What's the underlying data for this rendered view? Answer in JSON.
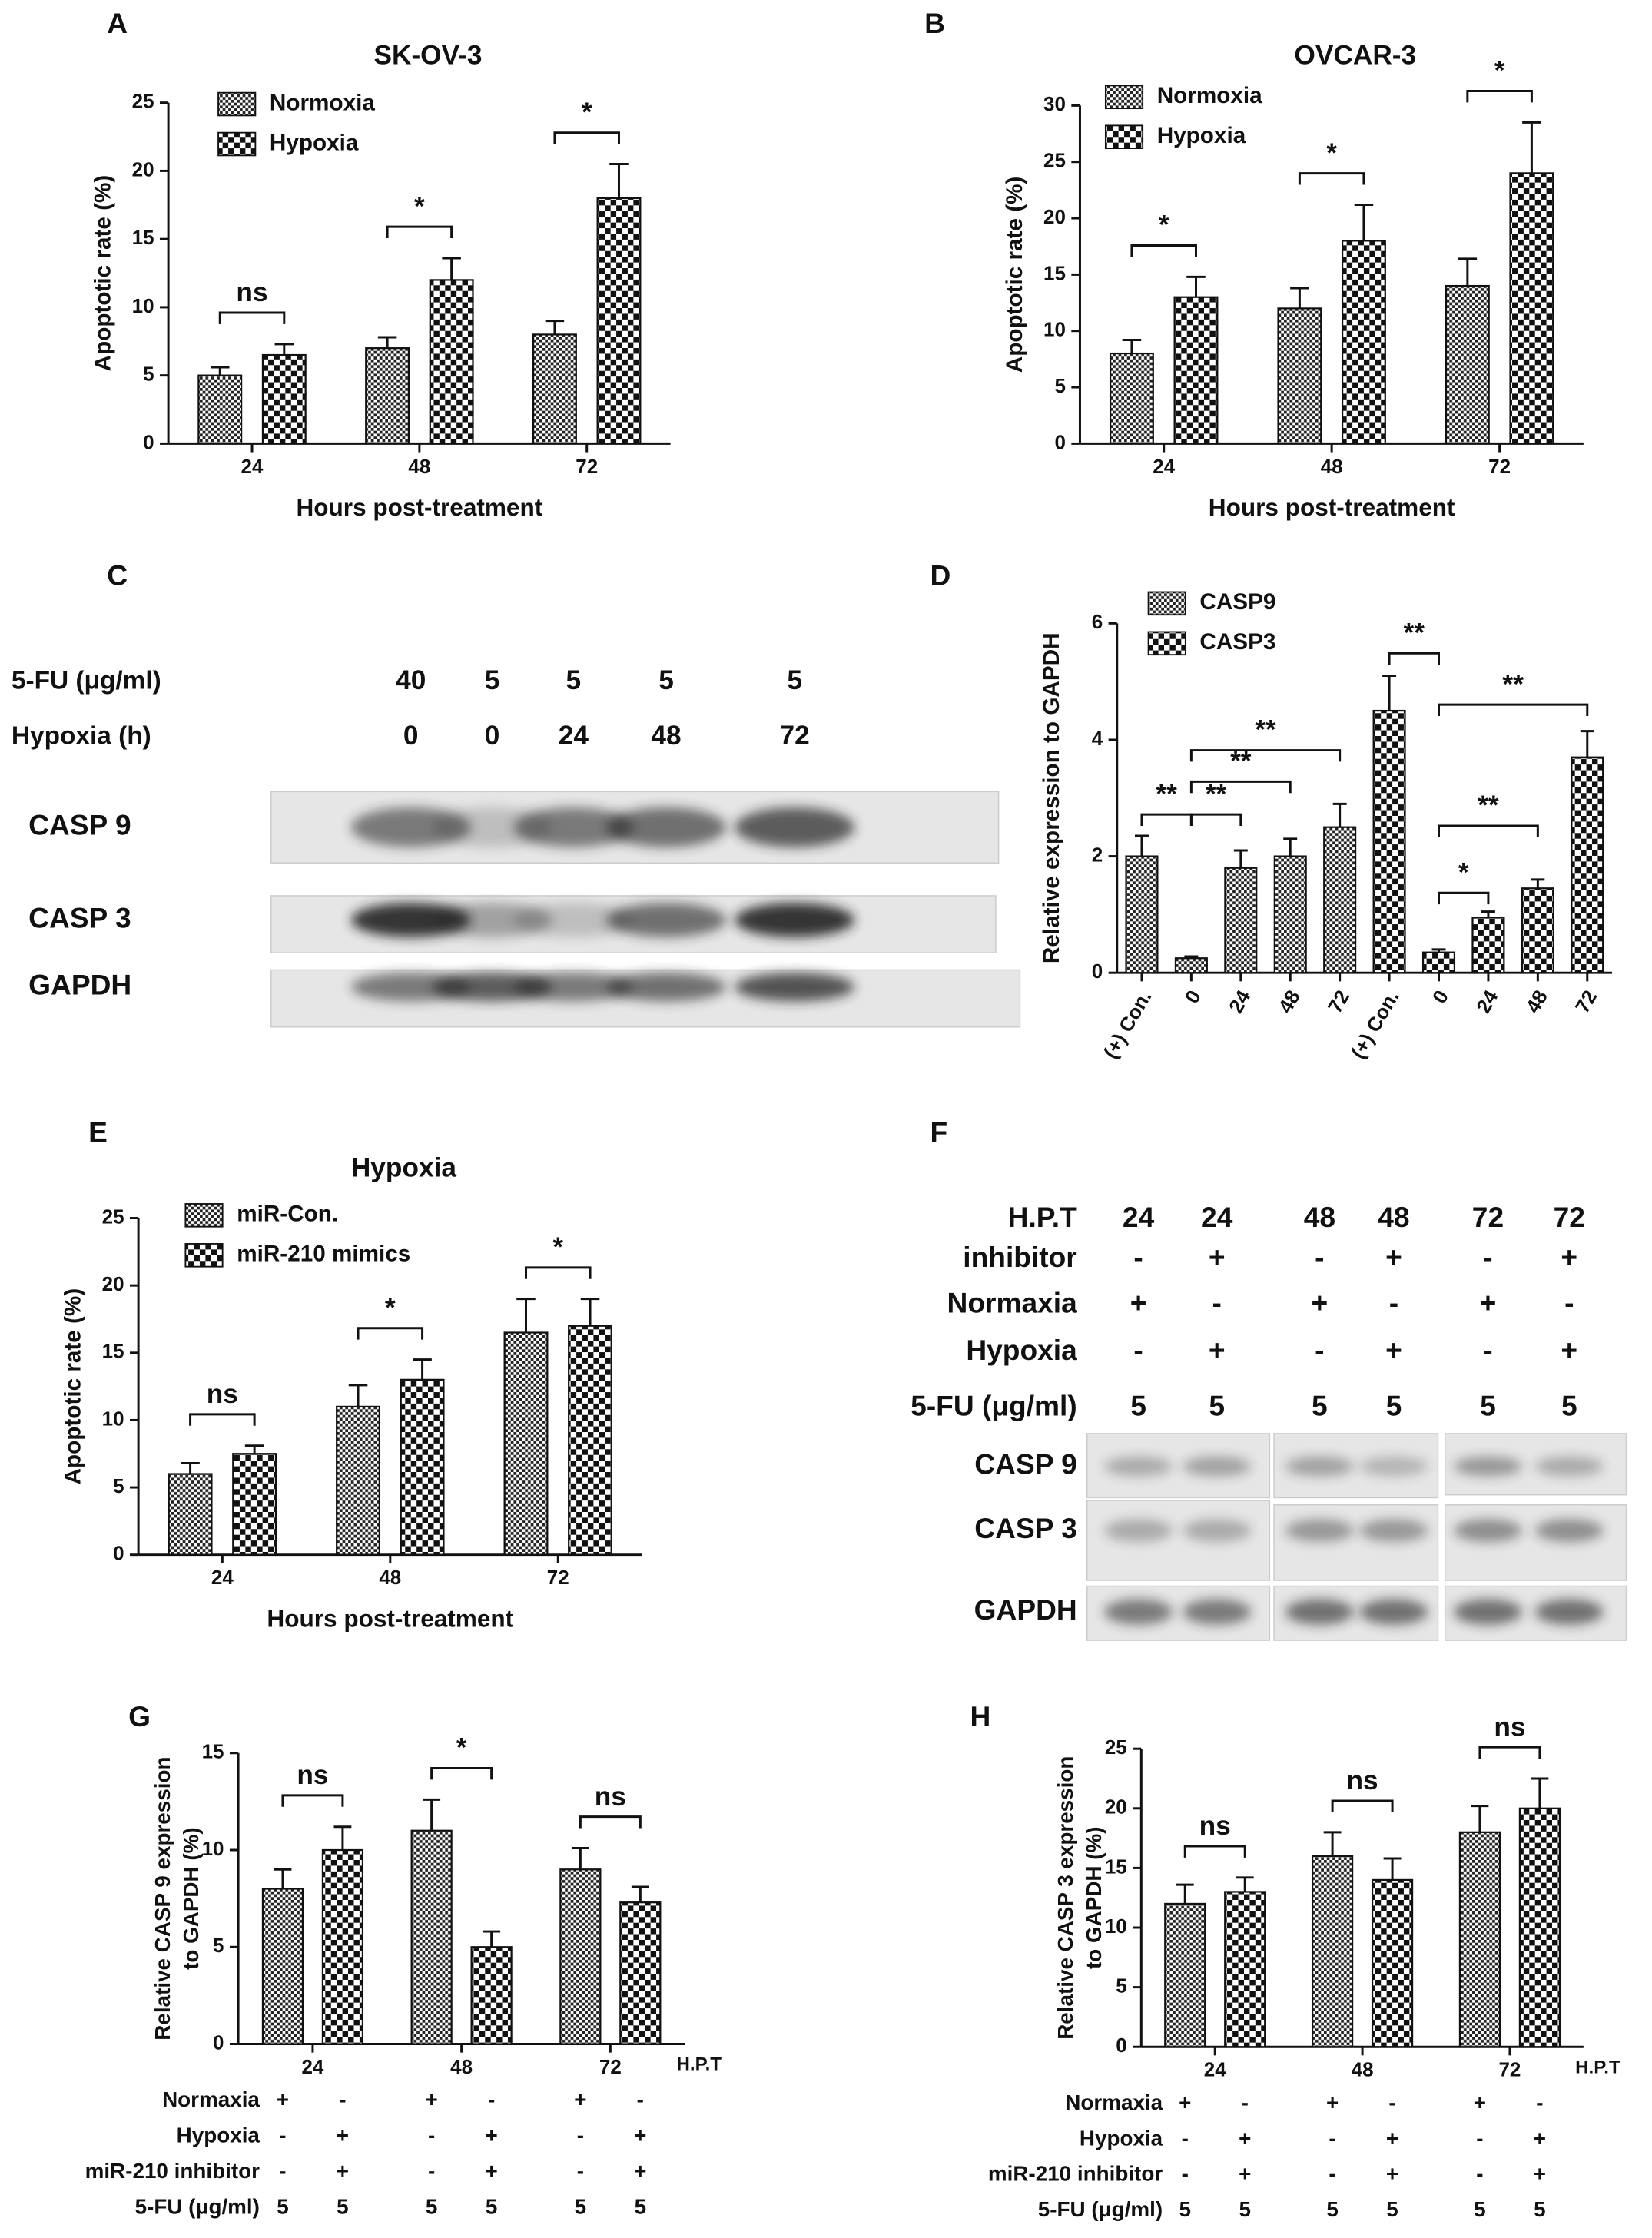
{
  "chart_data": [
    {
      "type": "bar",
      "letter": "A",
      "title": "SK-OV-3",
      "xlabel": "Hours post-treatment",
      "ylabel": "Apoptotic rate (%)",
      "categories": [
        "24",
        "48",
        "72"
      ],
      "series": [
        {
          "name": "Normoxia",
          "pattern": "fine",
          "values": [
            5,
            7,
            8
          ],
          "errors": [
            0.6,
            0.8,
            1.0
          ]
        },
        {
          "name": "Hypoxia",
          "pattern": "coarse",
          "values": [
            6.5,
            12,
            18
          ],
          "errors": [
            0.8,
            1.6,
            2.5
          ]
        }
      ],
      "ylim": [
        0,
        25
      ],
      "yticks": [
        0,
        5,
        10,
        15,
        20,
        25
      ],
      "annotations": [
        "ns",
        "*",
        "*"
      ]
    },
    {
      "type": "bar",
      "letter": "B",
      "title": "OVCAR-3",
      "xlabel": "Hours post-treatment",
      "ylabel": "Apoptotic rate (%)",
      "categories": [
        "24",
        "48",
        "72"
      ],
      "series": [
        {
          "name": "Normoxia",
          "pattern": "fine",
          "values": [
            8,
            12,
            14
          ],
          "errors": [
            1.2,
            1.8,
            2.4
          ]
        },
        {
          "name": "Hypoxia",
          "pattern": "coarse",
          "values": [
            13,
            18,
            24
          ],
          "errors": [
            1.8,
            3.2,
            4.5
          ]
        }
      ],
      "ylim": [
        0,
        30
      ],
      "yticks": [
        0,
        5,
        10,
        15,
        20,
        25,
        30
      ],
      "annotations": [
        "*",
        "*",
        "*"
      ]
    },
    {
      "type": "bar",
      "letter": "D",
      "ylabel": "Relative expression to GAPDH",
      "categories": [
        "(+) Con.",
        "0",
        "24",
        "48",
        "72",
        "(+) Con.",
        "0",
        "24",
        "48",
        "72"
      ],
      "series": [
        {
          "name": "CASP9",
          "pattern": "fine",
          "values": [
            2,
            0.25,
            1.8,
            2.0,
            2.5,
            null,
            null,
            null,
            null,
            null
          ],
          "errors": [
            0.35,
            0.03,
            0.3,
            0.3,
            0.4,
            null,
            null,
            null,
            null,
            null
          ]
        },
        {
          "name": "CASP3",
          "pattern": "coarse",
          "values": [
            null,
            null,
            null,
            null,
            null,
            4.5,
            0.35,
            0.95,
            1.45,
            3.7
          ],
          "errors": [
            null,
            null,
            null,
            null,
            null,
            0.6,
            0.05,
            0.1,
            0.15,
            0.45
          ]
        }
      ],
      "ylim": [
        0,
        6
      ],
      "yticks": [
        0,
        2,
        4,
        6
      ],
      "annotations": [
        "**",
        "**",
        "**",
        "**",
        "**",
        "**",
        "**",
        "*"
      ]
    },
    {
      "type": "bar",
      "letter": "E",
      "title": "Hypoxia",
      "xlabel": "Hours post-treatment",
      "ylabel": "Apoptotic rate (%)",
      "categories": [
        "24",
        "48",
        "72"
      ],
      "series": [
        {
          "name": "miR-Con.",
          "pattern": "fine",
          "values": [
            6,
            11,
            16.5
          ],
          "errors": [
            0.8,
            1.6,
            2.5
          ]
        },
        {
          "name": "miR-210 mimics",
          "pattern": "coarse",
          "values": [
            7.5,
            13,
            17
          ],
          "errors": [
            0.6,
            1.5,
            2
          ]
        }
      ],
      "ylim": [
        0,
        25
      ],
      "yticks": [
        0,
        5,
        10,
        15,
        20,
        25
      ],
      "annotations": [
        "ns",
        "*",
        "*"
      ]
    },
    {
      "type": "bar",
      "letter": "G",
      "ylabel": [
        "Relative CASP 9 expression",
        "to GAPDH (%)"
      ],
      "x_unit_label": "H.P.T",
      "categories": [
        "24",
        "48",
        "72"
      ],
      "series": [
        {
          "pattern": "fine",
          "values": [
            8,
            11,
            9
          ],
          "errors": [
            1,
            1.6,
            1.1
          ]
        },
        {
          "pattern": "coarse",
          "values": [
            10,
            5,
            7.3
          ],
          "errors": [
            1.2,
            0.8,
            0.8
          ]
        }
      ],
      "ylim": [
        0,
        15
      ],
      "yticks": [
        0,
        5,
        10,
        15
      ],
      "annotations": [
        "ns",
        "*",
        "ns"
      ],
      "conditions": [
        {
          "label": "Normaxia",
          "values": [
            "+",
            "-",
            "+",
            "-",
            "+",
            "-"
          ]
        },
        {
          "label": "Hypoxia",
          "values": [
            "-",
            "+",
            "-",
            "+",
            "-",
            "+"
          ]
        },
        {
          "label": "miR-210 inhibitor",
          "values": [
            "-",
            "+",
            "-",
            "+",
            "-",
            "+"
          ]
        },
        {
          "label": "5-FU (μg/ml)",
          "values": [
            5,
            5,
            5,
            5,
            5,
            5
          ]
        }
      ]
    },
    {
      "type": "bar",
      "letter": "H",
      "ylabel": [
        "Relative CASP 3 expression",
        "to GAPDH (%)"
      ],
      "x_unit_label": "H.P.T",
      "categories": [
        "24",
        "48",
        "72"
      ],
      "series": [
        {
          "pattern": "fine",
          "values": [
            12,
            16,
            18
          ],
          "errors": [
            1.6,
            2,
            2.2
          ]
        },
        {
          "pattern": "coarse",
          "values": [
            13,
            14,
            20
          ],
          "errors": [
            1.2,
            1.8,
            2.5
          ]
        }
      ],
      "ylim": [
        0,
        25
      ],
      "yticks": [
        0,
        5,
        10,
        15,
        20,
        25
      ],
      "annotations": [
        "ns",
        "ns",
        "ns"
      ],
      "conditions": [
        {
          "label": "Normaxia",
          "values": [
            "+",
            "-",
            "+",
            "-",
            "+",
            "-"
          ]
        },
        {
          "label": "Hypoxia",
          "values": [
            "-",
            "+",
            "-",
            "+",
            "-",
            "+"
          ]
        },
        {
          "label": "miR-210 inhibitor",
          "values": [
            "-",
            "+",
            "-",
            "+",
            "-",
            "+"
          ]
        },
        {
          "label": "5-FU (μg/ml)",
          "values": [
            5,
            5,
            5,
            5,
            5,
            5
          ]
        }
      ]
    }
  ],
  "blots": [
    {
      "letter": "C",
      "rows": [
        {
          "label": "5-FU (μg/ml)",
          "values": [
            40,
            5,
            5,
            5,
            5
          ]
        },
        {
          "label": "Hypoxia (h)",
          "values": [
            0,
            0,
            24,
            48,
            72
          ]
        }
      ],
      "bands": [
        "CASP 9",
        "CASP 3",
        "GAPDH"
      ]
    },
    {
      "letter": "F",
      "rows": [
        {
          "label": "H.P.T",
          "values": [
            24,
            24,
            48,
            48,
            72,
            72
          ]
        },
        {
          "label": "inhibitor",
          "values": [
            "-",
            "+",
            "-",
            "+",
            "-",
            "+"
          ]
        },
        {
          "label": "Normaxia",
          "values": [
            "+",
            "-",
            "+",
            "-",
            "+",
            "-"
          ]
        },
        {
          "label": "Hypoxia",
          "values": [
            "-",
            "+",
            "-",
            "+",
            "-",
            "+"
          ]
        },
        {
          "label": "5-FU (μg/ml)",
          "values": [
            5,
            5,
            5,
            5,
            5,
            5
          ]
        }
      ],
      "bands": [
        "CASP 9",
        "CASP 3",
        "GAPDH"
      ]
    }
  ]
}
